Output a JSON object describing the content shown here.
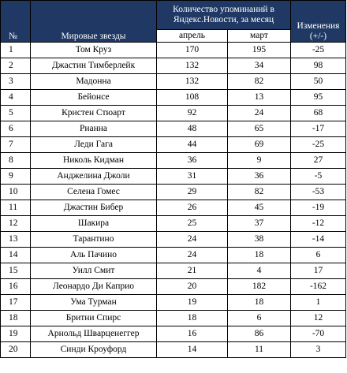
{
  "header": {
    "number": "№",
    "stars": "Мировые звезды",
    "mentions_group": "Количество упоминаний в Яндекс.Новости, за месяц",
    "april": "апрель",
    "march": "март",
    "change": "Изменения (+/-)"
  },
  "rows": [
    {
      "num": "1",
      "name": "Том Круз",
      "april": "170",
      "march": "195",
      "change": "-25"
    },
    {
      "num": "2",
      "name": "Джастин Тимберлейк",
      "april": "132",
      "march": "34",
      "change": "98"
    },
    {
      "num": "3",
      "name": "Мадонна",
      "april": "132",
      "march": "82",
      "change": "50"
    },
    {
      "num": "4",
      "name": "Бейонсе",
      "april": "108",
      "march": "13",
      "change": "95"
    },
    {
      "num": "5",
      "name": "Кристен Стюарт",
      "april": "92",
      "march": "24",
      "change": "68"
    },
    {
      "num": "6",
      "name": "Рианна",
      "april": "48",
      "march": "65",
      "change": "-17"
    },
    {
      "num": "7",
      "name": "Леди Гага",
      "april": "44",
      "march": "69",
      "change": "-25"
    },
    {
      "num": "8",
      "name": "Николь Кидман",
      "april": "36",
      "march": "9",
      "change": "27"
    },
    {
      "num": "9",
      "name": "Анджелина Джоли",
      "april": "31",
      "march": "36",
      "change": "-5"
    },
    {
      "num": "10",
      "name": "Селена Гомес",
      "april": "29",
      "march": "82",
      "change": "-53"
    },
    {
      "num": "11",
      "name": "Джастин Бибер",
      "april": "26",
      "march": "45",
      "change": "-19"
    },
    {
      "num": "12",
      "name": "Шакира",
      "april": "25",
      "march": "37",
      "change": "-12"
    },
    {
      "num": "13",
      "name": "Тарантино",
      "april": "24",
      "march": "38",
      "change": "-14"
    },
    {
      "num": "14",
      "name": "Аль Пачино",
      "april": "24",
      "march": "18",
      "change": "6"
    },
    {
      "num": "15",
      "name": "Уилл Смит",
      "april": "21",
      "march": "4",
      "change": "17"
    },
    {
      "num": "16",
      "name": "Леонардо Ди Каприо",
      "april": "20",
      "march": "182",
      "change": "-162"
    },
    {
      "num": "17",
      "name": "Ума Турман",
      "april": "19",
      "march": "18",
      "change": "1"
    },
    {
      "num": "18",
      "name": "Бритни Спирс",
      "april": "18",
      "march": "6",
      "change": "12"
    },
    {
      "num": "19",
      "name": "Арнольд Шварценеггер",
      "april": "16",
      "march": "86",
      "change": "-70"
    },
    {
      "num": "20",
      "name": "Синди Кроуфорд",
      "april": "14",
      "march": "11",
      "change": "3"
    }
  ]
}
